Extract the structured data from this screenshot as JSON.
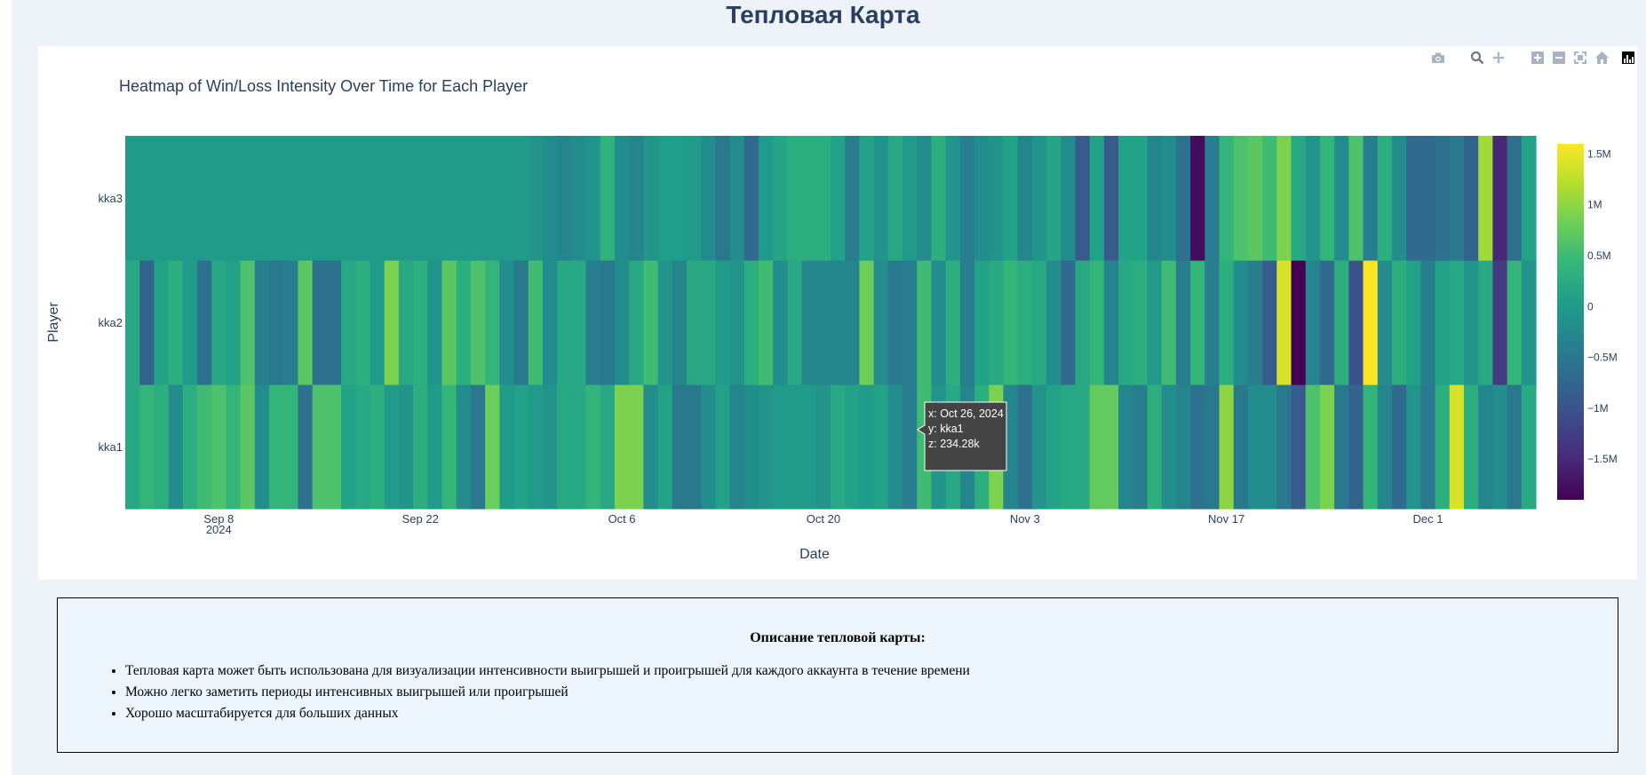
{
  "page": {
    "title": "Тепловая Карта"
  },
  "modebar": {
    "icons": [
      "camera-icon",
      "zoom-icon",
      "pan-icon",
      "zoom-in-icon",
      "zoom-out-icon",
      "autoscale-icon",
      "reset-axes-icon",
      "plotly-logo-icon"
    ]
  },
  "chart_data": {
    "type": "heatmap",
    "title": "Heatmap of Win/Loss Intensity Over Time for Each Player",
    "xlabel": "Date",
    "ylabel": "Player",
    "x_start": "2024-09-02",
    "x_tick_dates": [
      "2024-09-08",
      "2024-09-22",
      "2024-10-06",
      "2024-10-20",
      "2024-11-03",
      "2024-11-17",
      "2024-12-01"
    ],
    "x_tick_labels": [
      "Sep 8",
      "Sep 22",
      "Oct 6",
      "Oct 20",
      "Nov 3",
      "Nov 17",
      "Dec 1"
    ],
    "x_year_label": "2024",
    "y_categories": [
      "kka1",
      "kka2",
      "kka3"
    ],
    "colorscale": [
      "#440154",
      "#482878",
      "#3e4989",
      "#31688e",
      "#26828e",
      "#1f9e89",
      "#35b779",
      "#6ece58",
      "#b5de2b",
      "#fde725"
    ],
    "zmin": -1.9,
    "zmax": 1.6,
    "colorbar_ticks": [
      1.5,
      1,
      0.5,
      0,
      -0.5,
      -1,
      -1.5
    ],
    "colorbar_tick_labels": [
      "1.5M",
      "1M",
      "0.5M",
      "0",
      "−0.5M",
      "−1M",
      "−1.5M"
    ],
    "z_units": "millions",
    "z": {
      "kka3": [
        0,
        0,
        0,
        0,
        0,
        0,
        0,
        0,
        0,
        0,
        0,
        0,
        0,
        0,
        0,
        0,
        0,
        0,
        0,
        0,
        0,
        0,
        0,
        0,
        0,
        0,
        0,
        0,
        -0.1,
        -0.2,
        -0.3,
        -0.2,
        -0.1,
        0.35,
        -0.2,
        -0.3,
        -0.1,
        0.05,
        0.05,
        0,
        -0.2,
        -0.5,
        -0.2,
        -0.7,
        0,
        0.15,
        0.3,
        0.3,
        0.3,
        0.1,
        -0.4,
        0.1,
        -0.1,
        0.2,
        0,
        -0.2,
        0.3,
        -0.1,
        -0.4,
        -0.2,
        -0.1,
        0.1,
        -0.3,
        -0.1,
        0.15,
        -0.2,
        -0.9,
        0.1,
        -0.9,
        0.1,
        0.1,
        -0.3,
        -0.2,
        -0.6,
        -1.8,
        -0.4,
        0.4,
        0.6,
        0.7,
        0.5,
        0.9,
        0.2,
        -0.1,
        0.4,
        -0.2,
        0.6,
        -0.4,
        0.3,
        -0.2,
        -0.7,
        -0.7,
        -0.6,
        -0.5,
        -0.8,
        1.1,
        -1.5,
        -0.6,
        0.1
      ],
      "kka2": [
        0.2,
        -0.8,
        0.1,
        0.3,
        0,
        -0.6,
        0.2,
        0.1,
        0.6,
        -0.4,
        -0.5,
        -0.4,
        0.7,
        -0.6,
        -0.6,
        0.2,
        0.3,
        0,
        0.9,
        0.2,
        0.3,
        -0.1,
        0.7,
        0.3,
        0.6,
        0.4,
        -0.2,
        -0.5,
        0.5,
        -0.2,
        0.2,
        0.2,
        -0.4,
        -0.5,
        -0.2,
        0.2,
        0.5,
        -0.1,
        -0.3,
        0.2,
        0.2,
        0,
        -0.1,
        0.3,
        0.5,
        -0.2,
        0.2,
        -0.3,
        -0.3,
        -0.3,
        -0.3,
        0.8,
        -0.2,
        -0.5,
        -0.4,
        0.5,
        -0.2,
        0.3,
        -0.4,
        0.1,
        0.2,
        0.4,
        0.3,
        0.2,
        -0.2,
        -0.7,
        0.2,
        0.4,
        -0.3,
        0.2,
        0.3,
        0,
        0.5,
        -0.4,
        0.4,
        -0.4,
        0.3,
        -0.2,
        -0.4,
        -0.9,
        1.4,
        -1.9,
        -0.3,
        -0.7,
        0.3,
        -1.0,
        1.6,
        -0.2,
        0.3,
        0.1,
        -0.4,
        0.1,
        0.2,
        -0.1,
        0.2,
        -1.3,
        0.4,
        -0.1
      ],
      "kka1": [
        0.2,
        0.4,
        0.3,
        -0.2,
        0.3,
        0.5,
        0.6,
        0.4,
        0.7,
        -0.2,
        0.4,
        0.4,
        -0.6,
        0.6,
        0.6,
        0.1,
        0.2,
        0.3,
        0,
        -0.1,
        0.3,
        0,
        0.4,
        -0.2,
        -0.5,
        0.8,
        0,
        0.1,
        0,
        -0.1,
        0.2,
        0.2,
        0.4,
        0.2,
        0.9,
        0.9,
        -0.2,
        0.1,
        -0.5,
        -0.5,
        -0.2,
        0.1,
        -0.3,
        -0.2,
        -0.1,
        0,
        0,
        0,
        -0.1,
        0.2,
        0.1,
        0,
        0.1,
        -0.2,
        -0.4,
        0.5,
        -0.1,
        0.2,
        -0.3,
        0.3,
        0.9,
        -0.3,
        -0.6,
        -0.1,
        0.1,
        0.2,
        0.2,
        0.75,
        0.75,
        -0.3,
        -0.4,
        0.3,
        -0.2,
        -0.3,
        -0.6,
        -0.5,
        1.0,
        -0.5,
        -0.2,
        -0.2,
        -0.5,
        -0.9,
        0.6,
        0.9,
        -0.5,
        -0.8,
        0.4,
        -0.3,
        -0.7,
        -0.1,
        -0.5,
        0.3,
        1.4,
        0.3,
        -0.3,
        -0.2,
        -0.5,
        0.2
      ]
    }
  },
  "tooltip": {
    "x": "x: Oct 26, 2024",
    "y": "y: kka1",
    "z": "z: 234.28k"
  },
  "description": {
    "title": "Описание тепловой карты:",
    "items": [
      "Тепловая карта может быть использована для визуализации интенсивности выигрышей и проигрышей для каждого аккаунта в течение времени",
      "Можно легко заметить периоды интенсивных выигрышей или проигрышей",
      "Хорошо масштабируется для больших данных"
    ]
  }
}
